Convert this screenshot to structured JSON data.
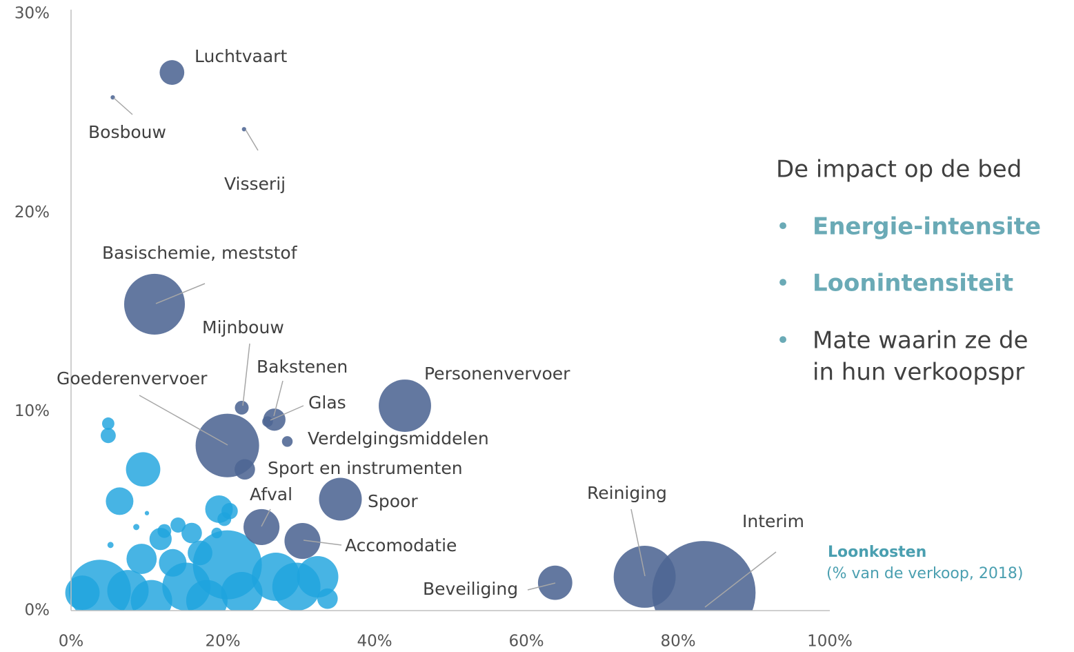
{
  "chart_data": {
    "type": "bubble",
    "xlim": [
      0,
      100
    ],
    "ylim": [
      0,
      30
    ],
    "xticks": [
      {
        "value": 0,
        "label": "0%"
      },
      {
        "value": 20,
        "label": "20%"
      },
      {
        "value": 40,
        "label": "40%"
      },
      {
        "value": 60,
        "label": "60%"
      },
      {
        "value": 80,
        "label": "80%"
      },
      {
        "value": 100,
        "label": "100%"
      }
    ],
    "yticks": [
      {
        "value": 0,
        "label": "0%"
      },
      {
        "value": 10,
        "label": "10%"
      },
      {
        "value": 20,
        "label": "20%"
      },
      {
        "value": 30,
        "label": "30%"
      }
    ],
    "xlabel": "Loonkosten",
    "xlabel_note": "(% van de verkoop, 2018)",
    "series": [
      {
        "color": "#1ea3de",
        "x": [
          4.9,
          4.9,
          9.5,
          6.4,
          10.0,
          8.6,
          14.1,
          12.3,
          11.8,
          15.9,
          19.2,
          19.5,
          20.9,
          20.2,
          3.8,
          9.3,
          13.4,
          17.0,
          20.6,
          27.0,
          32.5,
          33.8,
          7.5,
          15.2,
          1.5,
          22.5,
          29.7,
          10.6,
          17.9,
          5.2
        ],
        "values": [
          9.4,
          8.8,
          7.1,
          5.5,
          4.9,
          4.2,
          4.3,
          4.0,
          3.6,
          3.9,
          3.9,
          5.1,
          5.0,
          4.6,
          1.0,
          2.6,
          2.4,
          2.9,
          2.3,
          1.7,
          1.7,
          0.6,
          1.0,
          1.2,
          0.9,
          0.9,
          1.2,
          0.5,
          0.5,
          3.3
        ],
        "sizes": [
          8,
          12,
          62,
          40,
          1,
          2,
          12,
          10,
          26,
          22,
          6,
          40,
          14,
          10,
          202,
          48,
          40,
          32,
          250,
          122,
          90,
          22,
          90,
          122,
          62,
          90,
          122,
          90,
          90,
          2
        ]
      },
      {
        "color": "#4d6593",
        "x": [
          13.3,
          5.5,
          22.8,
          11.0,
          22.5,
          26.8,
          25.9,
          20.6,
          28.5,
          22.9,
          44.0,
          35.5,
          25.1,
          30.5,
          63.8,
          75.6,
          83.4
        ],
        "values": [
          27.05,
          25.8,
          24.2,
          15.4,
          10.2,
          9.6,
          9.5,
          8.3,
          8.5,
          7.1,
          10.3,
          5.6,
          4.2,
          3.5,
          1.4,
          1.7,
          0.9
        ],
        "sizes": [
          32,
          1,
          1,
          194,
          10,
          26,
          6,
          212,
          6,
          22,
          144,
          96,
          68,
          68,
          62,
          202,
          562
        ],
        "labels": [
          "Luchtvaart",
          "Bosbouw",
          "Visserij",
          "Basischemie, meststof",
          "Mijnbouw",
          "Bakstenen",
          "Glas",
          "Goederenvervoer",
          "Verdelgingsmiddelen",
          "Sport en instrumenten",
          "Personenvervoer",
          "Spoor",
          "Afval",
          "Accomodatie",
          "Beveiliging",
          "Reiniging",
          "Interim"
        ]
      }
    ]
  },
  "side_panel": {
    "heading": "De impact op de bed",
    "bullets": [
      "Energie-intensite",
      "Loonintensiteit",
      "Mate waarin ze de",
      "in hun verkoopspr"
    ]
  }
}
